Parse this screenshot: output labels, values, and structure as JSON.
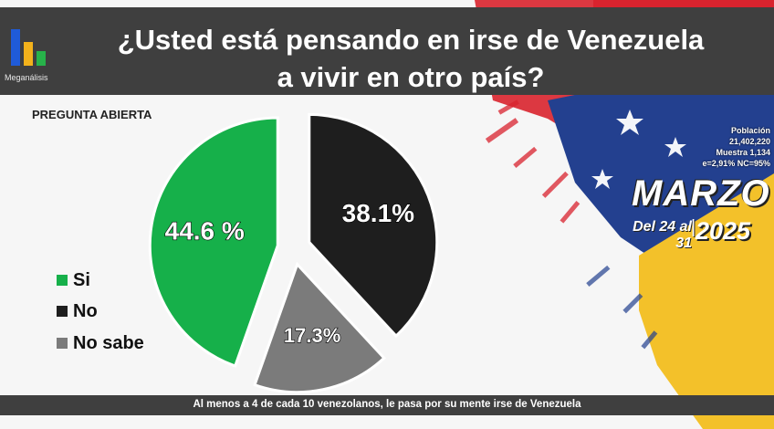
{
  "header": {
    "brand": "Meganálisis",
    "title_line1": "¿Usted está pensando en irse de Venezuela",
    "title_line2": "a vivir en otro país?"
  },
  "subtitle": "PREGUNTA ABIERTA",
  "info": {
    "poblacion_label": "Población",
    "poblacion_value": "21,402,220",
    "muestra": "Muestra 1,134",
    "error": "e=2,91%  NC=95%"
  },
  "date": {
    "month": "MARZO",
    "range": "Del 24 al 31",
    "year": "2025"
  },
  "footer": "Al menos a 4 de cada 10 venezolanos, le pasa por su mente irse de Venezuela",
  "colors": {
    "si": "#16b04a",
    "no": "#1e1e1e",
    "no_sabe": "#7b7b7b",
    "header_bg": "#3f3f3f",
    "flag_red": "#d9232e",
    "flag_blue": "#23408f",
    "flag_yellow": "#f3c12a"
  },
  "chart_data": {
    "type": "pie",
    "categories": [
      "Si",
      "No",
      "No sabe"
    ],
    "values": [
      44.6,
      38.1,
      17.3
    ],
    "labels": [
      "44.6 %",
      "38.1%",
      "17.3%"
    ],
    "legend": [
      "Si",
      "No",
      "No sabe"
    ],
    "legend_position": "left"
  }
}
